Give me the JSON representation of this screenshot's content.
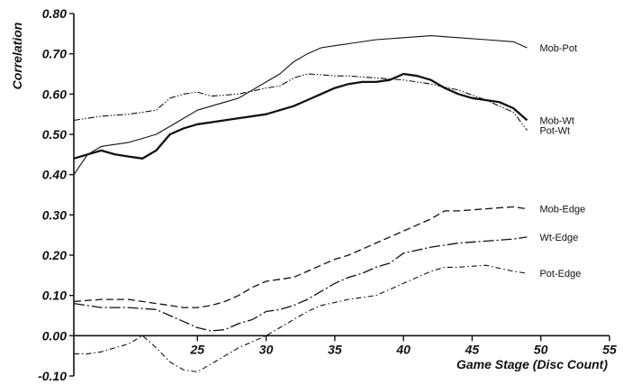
{
  "chart_data": {
    "type": "line",
    "xlabel": "Game Stage (Disc Count)",
    "ylabel": "Correlation",
    "xlim": [
      16,
      55
    ],
    "ylim": [
      -0.1,
      0.8
    ],
    "x_ticks": [
      {
        "value": 25,
        "label": "25"
      },
      {
        "value": 30,
        "label": "30"
      },
      {
        "value": 35,
        "label": "35"
      },
      {
        "value": 40,
        "label": "40"
      },
      {
        "value": 45,
        "label": "45"
      },
      {
        "value": 50,
        "label": "50"
      },
      {
        "value": 55,
        "label": "55"
      }
    ],
    "y_ticks": [
      {
        "value": 0.8,
        "label": "0.80"
      },
      {
        "value": 0.7,
        "label": "0.70"
      },
      {
        "value": 0.6,
        "label": "0.60"
      },
      {
        "value": 0.5,
        "label": "0.50"
      },
      {
        "value": 0.4,
        "label": "0.40"
      },
      {
        "value": 0.3,
        "label": "0.30"
      },
      {
        "value": 0.2,
        "label": "0.20"
      },
      {
        "value": 0.1,
        "label": "0.10"
      },
      {
        "value": 0.0,
        "label": "0.00"
      },
      {
        "value": -0.1,
        "label": "-0.10"
      }
    ],
    "grid": false,
    "legend": "inline labels at right end of each line",
    "series": [
      {
        "name": "Mob-Pot",
        "style": "solid-thin",
        "x": [
          16,
          17,
          18,
          20,
          21,
          22,
          23,
          24,
          25,
          26,
          28,
          30,
          31,
          32,
          33,
          34,
          35,
          36,
          38,
          40,
          42,
          44,
          46,
          48,
          49
        ],
        "y": [
          0.4,
          0.45,
          0.47,
          0.48,
          0.49,
          0.5,
          0.52,
          0.54,
          0.56,
          0.57,
          0.59,
          0.63,
          0.65,
          0.68,
          0.7,
          0.715,
          0.72,
          0.725,
          0.735,
          0.74,
          0.745,
          0.74,
          0.735,
          0.73,
          0.715
        ]
      },
      {
        "name": "Mob-Wt",
        "style": "solid-thick",
        "x": [
          16,
          17,
          18,
          19,
          20,
          21,
          22,
          23,
          24,
          25,
          26,
          27,
          28,
          30,
          31,
          32,
          33,
          34,
          35,
          36,
          37,
          38,
          39,
          40,
          41,
          42,
          43,
          44,
          45,
          46,
          47,
          48,
          49
        ],
        "y": [
          0.44,
          0.45,
          0.46,
          0.45,
          0.445,
          0.44,
          0.46,
          0.5,
          0.515,
          0.525,
          0.53,
          0.535,
          0.54,
          0.55,
          0.56,
          0.57,
          0.585,
          0.6,
          0.615,
          0.625,
          0.63,
          0.63,
          0.635,
          0.65,
          0.645,
          0.635,
          0.615,
          0.6,
          0.59,
          0.585,
          0.58,
          0.565,
          0.535
        ]
      },
      {
        "name": "Pot-Wt",
        "style": "dash-dot-dot",
        "x": [
          16,
          18,
          20,
          22,
          23,
          24,
          25,
          26,
          28,
          30,
          31,
          32,
          33,
          34,
          35,
          36,
          38,
          40,
          42,
          44,
          46,
          48,
          49
        ],
        "y": [
          0.535,
          0.545,
          0.55,
          0.56,
          0.59,
          0.6,
          0.605,
          0.595,
          0.6,
          0.615,
          0.62,
          0.64,
          0.65,
          0.648,
          0.645,
          0.645,
          0.64,
          0.635,
          0.625,
          0.61,
          0.585,
          0.555,
          0.51
        ]
      },
      {
        "name": "Mob-Edge",
        "style": "dashed",
        "x": [
          16,
          18,
          20,
          21,
          22,
          23,
          24,
          25,
          26,
          27,
          28,
          29,
          30,
          31,
          32,
          33,
          34,
          35,
          36,
          37,
          38,
          40,
          42,
          43,
          44,
          46,
          48,
          49
        ],
        "y": [
          0.085,
          0.09,
          0.09,
          0.085,
          0.08,
          0.075,
          0.07,
          0.07,
          0.075,
          0.085,
          0.1,
          0.12,
          0.135,
          0.14,
          0.145,
          0.16,
          0.175,
          0.19,
          0.2,
          0.215,
          0.23,
          0.26,
          0.29,
          0.31,
          0.31,
          0.315,
          0.32,
          0.315
        ]
      },
      {
        "name": "Wt-Edge",
        "style": "long-dash-dot",
        "x": [
          16,
          18,
          20,
          22,
          23,
          24,
          25,
          26,
          27,
          28,
          29,
          30,
          31,
          32,
          33,
          34,
          35,
          36,
          37,
          38,
          39,
          40,
          42,
          44,
          46,
          48,
          49
        ],
        "y": [
          0.08,
          0.07,
          0.07,
          0.065,
          0.05,
          0.035,
          0.02,
          0.012,
          0.015,
          0.03,
          0.04,
          0.06,
          0.065,
          0.075,
          0.09,
          0.11,
          0.13,
          0.145,
          0.155,
          0.17,
          0.18,
          0.205,
          0.22,
          0.23,
          0.235,
          0.24,
          0.245
        ]
      },
      {
        "name": "Pot-Edge",
        "style": "dash-dot",
        "x": [
          16,
          17,
          18,
          20,
          21,
          22,
          23,
          24,
          25,
          26,
          28,
          30,
          32,
          33,
          34,
          36,
          38,
          40,
          42,
          43,
          44,
          46,
          48,
          49
        ],
        "y": [
          -0.045,
          -0.045,
          -0.04,
          -0.02,
          0.0,
          -0.03,
          -0.065,
          -0.085,
          -0.09,
          -0.07,
          -0.03,
          0.0,
          0.04,
          0.06,
          0.075,
          0.09,
          0.1,
          0.13,
          0.16,
          0.17,
          0.17,
          0.175,
          0.16,
          0.155
        ]
      }
    ]
  }
}
